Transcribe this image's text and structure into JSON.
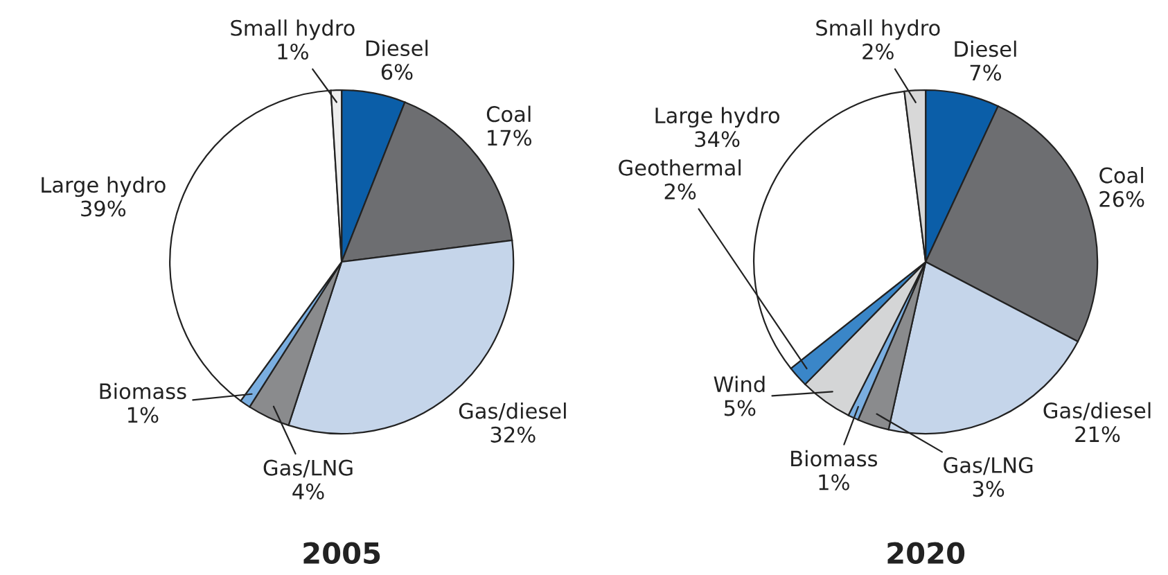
{
  "chart_data": [
    {
      "type": "pie",
      "title": "2005",
      "categories": [
        "Diesel",
        "Coal",
        "Gas/diesel",
        "Gas/LNG",
        "Biomass",
        "Large hydro",
        "Small hydro"
      ],
      "values": [
        6,
        17,
        32,
        4,
        1,
        39,
        1
      ],
      "value_labels": [
        "6%",
        "17%",
        "32%",
        "4%",
        "1%",
        "39%",
        "1%"
      ],
      "colors": [
        "#0b5ea8",
        "#6d6e71",
        "#c5d5ea",
        "#8a8b8d",
        "#7aaee0",
        "#ffffff",
        "#eeeeee"
      ]
    },
    {
      "type": "pie",
      "title": "2020",
      "categories": [
        "Diesel",
        "Coal",
        "Gas/diesel",
        "Gas/LNG",
        "Biomass",
        "Wind",
        "Geothermal",
        "Large hydro",
        "Small hydro"
      ],
      "values": [
        7,
        26,
        21,
        3,
        1,
        5,
        2,
        34,
        2
      ],
      "value_labels": [
        "7%",
        "26%",
        "21%",
        "3%",
        "1%",
        "5%",
        "2%",
        "34%",
        "2%"
      ],
      "colors": [
        "#0b5ea8",
        "#6d6e71",
        "#c5d5ea",
        "#8a8b8d",
        "#7aaee0",
        "#d4d5d6",
        "#3a86c8",
        "#ffffff",
        "#d8d8d8"
      ]
    }
  ]
}
